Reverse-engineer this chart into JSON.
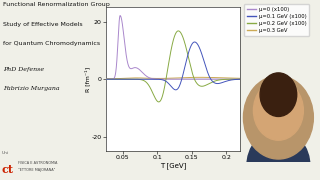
{
  "title_lines": [
    "Functional Renormalization Group",
    "Study of Effective Models",
    "for Quantum Chromodynamics",
    "PhD Defense",
    "Fabrizio Murgana"
  ],
  "xlabel": "T [GeV]",
  "ylabel": "R [fm⁻¹]",
  "ylim": [
    -25,
    25
  ],
  "xlim": [
    0.025,
    0.22
  ],
  "legend_labels": [
    "μ=0 (x100)",
    "μ=0.1 GeV (x100)",
    "μ=0.2 GeV (x100)",
    "μ=0.3 GeV"
  ],
  "legend_colors": [
    "#aa88cc",
    "#4455bb",
    "#88aa44",
    "#ccaa55"
  ],
  "bg_color": "#f0f0e8",
  "plot_bg": "#ffffff",
  "text_color": "#111111",
  "photo_color": "#888888"
}
